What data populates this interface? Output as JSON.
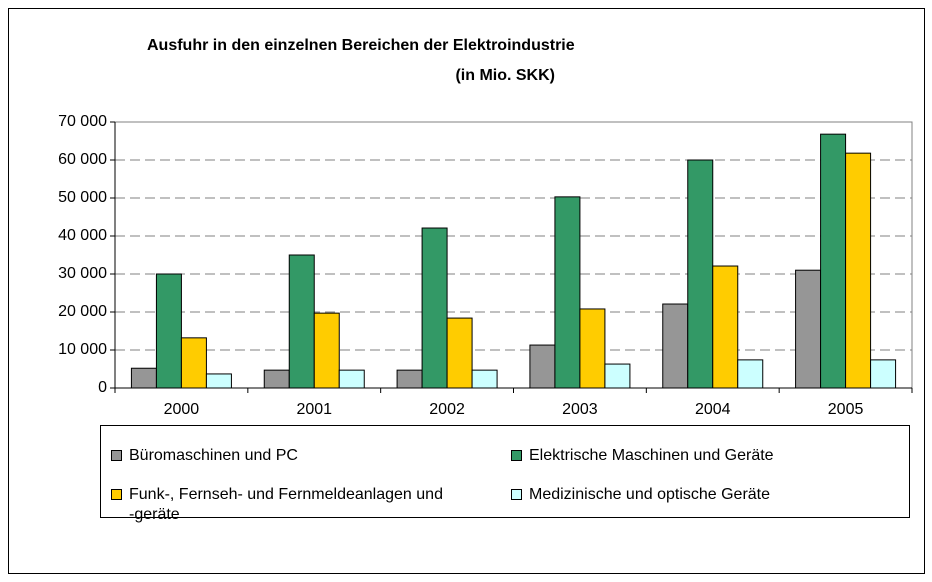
{
  "chart_data": {
    "type": "bar",
    "title": "Ausfuhr in den einzelnen Bereichen der Elektroindustrie",
    "subtitle": "(in Mio. SKK)",
    "categories": [
      "2000",
      "2001",
      "2002",
      "2003",
      "2004",
      "2005"
    ],
    "series": [
      {
        "name": "Büromaschinen und PC",
        "color": "#969696",
        "values": [
          5200,
          4700,
          4700,
          11300,
          22100,
          31000
        ]
      },
      {
        "name": "Elektrische Maschinen und Geräte",
        "color": "#339966",
        "values": [
          30000,
          35000,
          42100,
          50300,
          60000,
          66800
        ]
      },
      {
        "name": "Funk-, Fernseh- und Fernmeldeanlagen und -geräte",
        "color": "#ffcc00",
        "values": [
          13200,
          19700,
          18400,
          20800,
          32100,
          61800
        ]
      },
      {
        "name": "Medizinische und optische Geräte",
        "color": "#ccffff",
        "values": [
          3700,
          4700,
          4700,
          6300,
          7400,
          7400
        ]
      }
    ],
    "ylim": [
      0,
      70000
    ],
    "yticks": [
      0,
      {
        "value": 10000,
        "label": "10 000"
      },
      {
        "value": 20000,
        "label": "20 000"
      },
      {
        "value": 30000,
        "label": "30 000"
      },
      {
        "value": 40000,
        "label": "40 000"
      },
      {
        "value": 50000,
        "label": "50 000"
      },
      {
        "value": 60000,
        "label": "60 000"
      },
      {
        "value": 70000,
        "label": "70 000"
      }
    ],
    "grid": true
  }
}
